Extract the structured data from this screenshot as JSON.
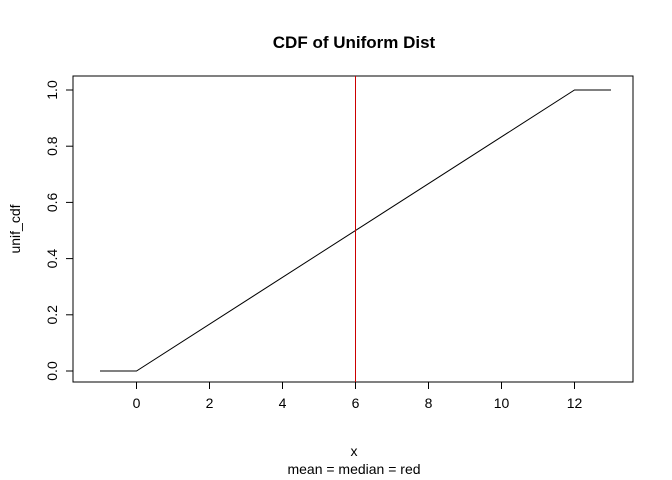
{
  "chart_data": {
    "type": "line",
    "title": "CDF of Uniform Dist",
    "xlabel": "x",
    "subtitle": "mean = median = red",
    "ylabel": "unif_cdf",
    "xlim": [
      -1,
      13
    ],
    "ylim": [
      0,
      1
    ],
    "x_ticks": [
      0,
      2,
      4,
      6,
      8,
      10,
      12
    ],
    "y_ticks": [
      0.0,
      0.2,
      0.4,
      0.6,
      0.8,
      1.0
    ],
    "x_tick_labels": [
      "0",
      "2",
      "4",
      "6",
      "8",
      "10",
      "12"
    ],
    "y_tick_labels": [
      "0.0",
      "0.2",
      "0.4",
      "0.6",
      "0.8",
      "1.0"
    ],
    "grid": false,
    "legend": "none",
    "series": [
      {
        "color": "#000000",
        "x": [
          -1,
          0,
          12,
          13
        ],
        "y": [
          0,
          0,
          1,
          1
        ]
      }
    ],
    "vlines": [
      {
        "x": 6,
        "color": "#cc0000"
      }
    ]
  }
}
